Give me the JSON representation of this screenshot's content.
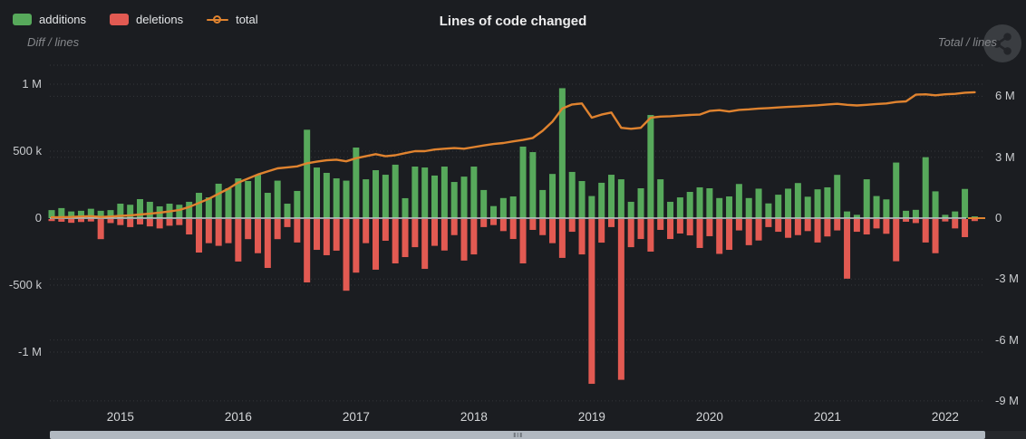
{
  "header": {
    "title": "Lines of code changed",
    "left_axis_caption": "Diff / lines",
    "right_axis_caption": "Total / lines",
    "legend": [
      {
        "label": "additions",
        "color": "#57a95b",
        "marker": "square"
      },
      {
        "label": "deletions",
        "color": "#e25a52",
        "marker": "square"
      },
      {
        "label": "total",
        "color": "#e0832f",
        "marker": "line-dot"
      }
    ]
  },
  "colors": {
    "background": "#1b1d21",
    "additions": "#57a95b",
    "deletions": "#e25a52",
    "total_line": "#e0832f",
    "zero_axis": "#c9ccd0",
    "scrollbar_thumb": "#b1b8c0"
  },
  "chart_data": {
    "type": "bar",
    "title": "Lines of code changed",
    "grid": "dotted",
    "legend_position": "top-left",
    "x": [
      "2014-06",
      "2014-07",
      "2014-08",
      "2014-09",
      "2014-10",
      "2014-11",
      "2014-12",
      "2015-01",
      "2015-02",
      "2015-03",
      "2015-04",
      "2015-05",
      "2015-06",
      "2015-07",
      "2015-08",
      "2015-09",
      "2015-10",
      "2015-11",
      "2015-12",
      "2016-01",
      "2016-02",
      "2016-03",
      "2016-04",
      "2016-05",
      "2016-06",
      "2016-07",
      "2016-08",
      "2016-09",
      "2016-10",
      "2016-11",
      "2016-12",
      "2017-01",
      "2017-02",
      "2017-03",
      "2017-04",
      "2017-05",
      "2017-06",
      "2017-07",
      "2017-08",
      "2017-09",
      "2017-10",
      "2017-11",
      "2017-12",
      "2018-01",
      "2018-02",
      "2018-03",
      "2018-04",
      "2018-05",
      "2018-06",
      "2018-07",
      "2018-08",
      "2018-09",
      "2018-10",
      "2018-11",
      "2018-12",
      "2019-01",
      "2019-02",
      "2019-03",
      "2019-04",
      "2019-05",
      "2019-06",
      "2019-07",
      "2019-08",
      "2019-09",
      "2019-10",
      "2019-11",
      "2019-12",
      "2020-01",
      "2020-02",
      "2020-03",
      "2020-04",
      "2020-05",
      "2020-06",
      "2020-07",
      "2020-08",
      "2020-09",
      "2020-10",
      "2020-11",
      "2020-12",
      "2021-01",
      "2021-02",
      "2021-03",
      "2021-04",
      "2021-05",
      "2021-06",
      "2021-07",
      "2021-08",
      "2021-09",
      "2021-10",
      "2021-11",
      "2021-12",
      "2022-01",
      "2022-02",
      "2022-03",
      "2022-04"
    ],
    "x_tick_labels": [
      "2015",
      "2016",
      "2017",
      "2018",
      "2019",
      "2020",
      "2021",
      "2022"
    ],
    "series": [
      {
        "name": "additions",
        "type": "bar",
        "axis": "left",
        "color": "#57a95b",
        "values": [
          60000,
          75000,
          50000,
          55000,
          70000,
          55000,
          60000,
          108000,
          100000,
          142000,
          122000,
          88000,
          108000,
          100000,
          122000,
          189000,
          155000,
          257000,
          223000,
          297000,
          277000,
          324000,
          189000,
          280000,
          108000,
          203000,
          660000,
          378000,
          338000,
          297000,
          280000,
          527000,
          290000,
          358000,
          324000,
          399000,
          149000,
          385000,
          378000,
          318000,
          385000,
          270000,
          310000,
          385000,
          210000,
          90000,
          150000,
          162000,
          534000,
          493000,
          210000,
          330000,
          970000,
          345000,
          277000,
          165000,
          264000,
          324000,
          290000,
          122000,
          223000,
          770000,
          290000,
          122000,
          155000,
          196000,
          230000,
          223000,
          150000,
          162000,
          255000,
          150000,
          220000,
          110000,
          175000,
          220000,
          262000,
          160000,
          215000,
          230000,
          323000,
          50000,
          25000,
          290000,
          165000,
          140000,
          415000,
          55000,
          62000,
          455000,
          200000,
          25000,
          50000,
          218000,
          12000
        ]
      },
      {
        "name": "deletions",
        "type": "bar",
        "axis": "left",
        "color": "#e25a52",
        "values": [
          -15000,
          -20000,
          -28000,
          -22000,
          -18000,
          -150000,
          -30000,
          -45000,
          -60000,
          -40000,
          -55000,
          -70000,
          -50000,
          -45000,
          -115000,
          -250000,
          -180000,
          -200000,
          -180000,
          -317000,
          -150000,
          -255000,
          -365000,
          -150000,
          -60000,
          -175000,
          -473000,
          -230000,
          -270000,
          -236000,
          -535000,
          -400000,
          -180000,
          -378000,
          -162000,
          -331000,
          -284000,
          -210000,
          -372000,
          -200000,
          -235000,
          -120000,
          -310000,
          -264000,
          -60000,
          -45000,
          -90000,
          -149000,
          -331000,
          -81000,
          -120000,
          -180000,
          -290000,
          -95000,
          -264000,
          -1230000,
          -176000,
          -60000,
          -1200000,
          -210000,
          -149000,
          -243000,
          -81000,
          -149000,
          -108000,
          -122000,
          -216000,
          -128000,
          -260000,
          -230000,
          -85000,
          -195000,
          -160000,
          -60000,
          -95000,
          -140000,
          -120000,
          -90000,
          -175000,
          -130000,
          -85000,
          -445000,
          -95000,
          -115000,
          -70000,
          -110000,
          -315000,
          -20000,
          -30000,
          -175000,
          -255000,
          -18000,
          -70000,
          -135000,
          -15000
        ]
      },
      {
        "name": "total",
        "type": "line",
        "axis": "right",
        "color": "#e0832f",
        "values": [
          40000,
          50000,
          60000,
          80000,
          100000,
          60000,
          80000,
          110000,
          140000,
          180000,
          220000,
          270000,
          330000,
          400000,
          550000,
          750000,
          950000,
          1200000,
          1450000,
          1750000,
          1950000,
          2150000,
          2300000,
          2450000,
          2500000,
          2550000,
          2700000,
          2780000,
          2850000,
          2880000,
          2800000,
          2950000,
          3050000,
          3150000,
          3050000,
          3100000,
          3200000,
          3300000,
          3300000,
          3380000,
          3420000,
          3450000,
          3420000,
          3500000,
          3580000,
          3650000,
          3700000,
          3780000,
          3850000,
          3950000,
          4300000,
          4750000,
          5400000,
          5600000,
          5650000,
          4950000,
          5100000,
          5200000,
          4450000,
          4400000,
          4450000,
          4950000,
          5000000,
          5020000,
          5050000,
          5080000,
          5100000,
          5280000,
          5320000,
          5250000,
          5330000,
          5360000,
          5400000,
          5420000,
          5450000,
          5480000,
          5500000,
          5530000,
          5560000,
          5600000,
          5630000,
          5580000,
          5550000,
          5580000,
          5620000,
          5650000,
          5720000,
          5750000,
          6080000,
          6100000,
          6050000,
          6100000,
          6120000,
          6180000,
          6200000
        ]
      }
    ],
    "left_axis": {
      "caption": "Diff / lines",
      "ticks": [
        "1 M",
        "500 k",
        "0",
        "-500 k",
        "-1 M"
      ],
      "tick_values": [
        1000000,
        500000,
        0,
        -500000,
        -1000000
      ],
      "range": [
        -1450000,
        1270000
      ]
    },
    "right_axis": {
      "caption": "Total / lines",
      "ticks": [
        "6 M",
        "3 M",
        "0",
        "-3 M",
        "-6 M",
        "-9 M"
      ],
      "tick_values": [
        6000000,
        3000000,
        0,
        -3000000,
        -6000000,
        -9000000
      ],
      "range": [
        -9100000,
        7500000
      ]
    }
  }
}
